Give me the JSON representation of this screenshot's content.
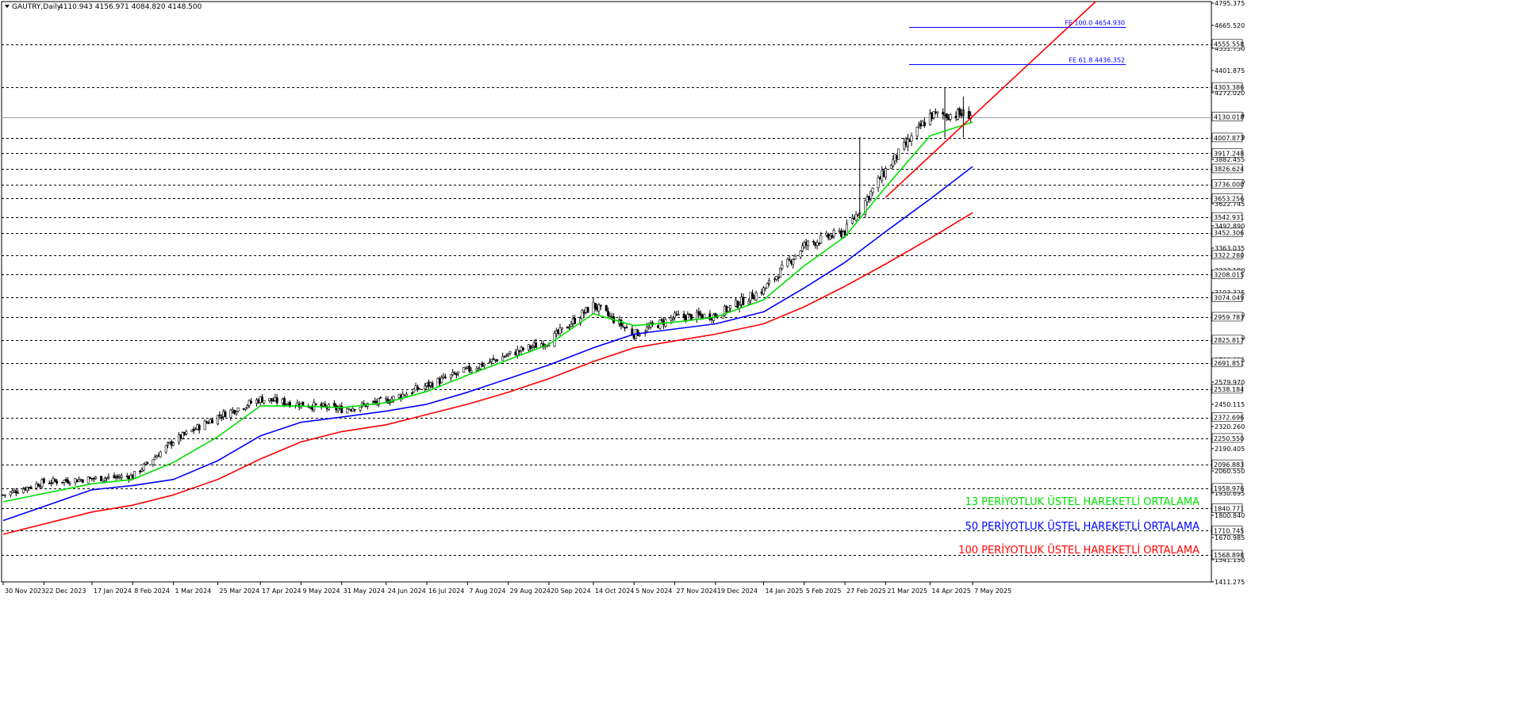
{
  "header": {
    "symbol_timeframe": "GAUTRY,Daily",
    "ohlc": "4110.943 4156.971 4084.820 4148.500"
  },
  "colors": {
    "background": "#ffffff",
    "candle": "#000000",
    "ema13": "#00e000",
    "ema50": "#0000ff",
    "ema100": "#ff0000",
    "trendline": "#ff0000",
    "fib": "#0000ff",
    "level_line": "#000000"
  },
  "chart_data": {
    "type": "candlestick",
    "title": "GAUTRY,Daily",
    "ylim": [
      1411.275,
      4795.375
    ],
    "x_tick_labels": [
      "30 Nov 2023",
      "22 Dec 2023",
      "17 Jan 2024",
      "8 Feb 2024",
      "1 Mar 2024",
      "25 Mar 2024",
      "17 Apr 2024",
      "9 May 2024",
      "31 May 2024",
      "24 Jun 2024",
      "16 Jul 2024",
      "7 Aug 2024",
      "29 Aug 2024",
      "20 Sep 2024",
      "14 Oct 2024",
      "5 Nov 2024",
      "27 Nov 2024",
      "19 Dec 2024",
      "14 Jan 2025",
      "5 Feb 2025",
      "27 Feb 2025",
      "21 Mar 2025",
      "14 Apr 2025",
      "7 May 2025"
    ],
    "y_tick_labels": [
      "4795.375",
      "4665.520",
      "4531.730",
      "4401.875",
      "4272.020",
      "4142.165",
      "4012.310",
      "3882.455",
      "3752.600",
      "3622.745",
      "3492.890",
      "3363.035",
      "3233.180",
      "3103.325",
      "2973.470",
      "2839.680",
      "2709.825",
      "2579.970",
      "2450.115",
      "2320.260",
      "2190.405",
      "2060.550",
      "1930.695",
      "1800.840",
      "1670.985",
      "1541.130",
      "1411.275"
    ],
    "level_lines": [
      4555.558,
      4303.386,
      4007.873,
      3917.248,
      3826.624,
      3736.0,
      3653.256,
      3542.931,
      3452.306,
      3322.28,
      3208.015,
      3074.049,
      2959.783,
      2825.817,
      2691.851,
      2538.184,
      2372.696,
      2250.55,
      2096.883,
      1958.976,
      1840.771,
      1710.745,
      1568.898
    ],
    "current_price": 4130.018,
    "fibonacci_expansion": [
      {
        "label": "FE 100.0 4654.930",
        "value": 4654.93
      },
      {
        "label": "FE 61.8 4436.352",
        "value": 4436.352
      }
    ],
    "trendline": {
      "start": [
        "21 Mar 2025",
        3660
      ],
      "end": [
        "7 May 2025",
        4130
      ]
    },
    "candles_anchor_close": [
      [
        "2023-11-30",
        1920
      ],
      [
        "2023-12-22",
        1995
      ],
      [
        "2024-01-17",
        2015
      ],
      [
        "2024-02-08",
        2030
      ],
      [
        "2024-03-01",
        2235
      ],
      [
        "2024-03-25",
        2380
      ],
      [
        "2024-04-17",
        2480
      ],
      [
        "2024-05-09",
        2450
      ],
      [
        "2024-05-31",
        2420
      ],
      [
        "2024-06-24",
        2470
      ],
      [
        "2024-07-16",
        2560
      ],
      [
        "2024-08-07",
        2650
      ],
      [
        "2024-08-29",
        2740
      ],
      [
        "2024-09-20",
        2820
      ],
      [
        "2024-10-14",
        3030
      ],
      [
        "2024-11-05",
        2860
      ],
      [
        "2024-11-27",
        2960
      ],
      [
        "2024-12-19",
        2970
      ],
      [
        "2025-01-14",
        3120
      ],
      [
        "2025-02-05",
        3380
      ],
      [
        "2025-02-27",
        3460
      ],
      [
        "2025-03-21",
        3820
      ],
      [
        "2025-04-14",
        4140
      ],
      [
        "2025-05-07",
        4148.5
      ]
    ],
    "series": [
      {
        "name": "13 PERİYOTLUK ÜSTEL HAREKETLİ ORTALAMA",
        "points": [
          [
            "2023-11-30",
            1880
          ],
          [
            "2024-01-17",
            1985
          ],
          [
            "2024-02-08",
            2010
          ],
          [
            "2024-03-01",
            2110
          ],
          [
            "2024-03-25",
            2260
          ],
          [
            "2024-04-17",
            2440
          ],
          [
            "2024-05-09",
            2440
          ],
          [
            "2024-05-31",
            2430
          ],
          [
            "2024-06-24",
            2460
          ],
          [
            "2024-07-16",
            2525
          ],
          [
            "2024-08-07",
            2620
          ],
          [
            "2024-08-29",
            2710
          ],
          [
            "2024-09-20",
            2800
          ],
          [
            "2024-10-14",
            2980
          ],
          [
            "2024-11-05",
            2910
          ],
          [
            "2024-11-27",
            2930
          ],
          [
            "2024-12-19",
            2960
          ],
          [
            "2025-01-14",
            3060
          ],
          [
            "2025-02-05",
            3260
          ],
          [
            "2025-02-27",
            3430
          ],
          [
            "2025-03-21",
            3720
          ],
          [
            "2025-04-14",
            4020
          ],
          [
            "2025-05-07",
            4100
          ]
        ]
      },
      {
        "name": "50 PERİYOTLUK ÜSTEL HAREKETLİ ORTALAMA",
        "points": [
          [
            "2023-11-30",
            1770
          ],
          [
            "2024-01-17",
            1950
          ],
          [
            "2024-02-08",
            1975
          ],
          [
            "2024-03-01",
            2010
          ],
          [
            "2024-03-25",
            2120
          ],
          [
            "2024-04-17",
            2265
          ],
          [
            "2024-05-09",
            2345
          ],
          [
            "2024-05-31",
            2375
          ],
          [
            "2024-06-24",
            2410
          ],
          [
            "2024-07-16",
            2450
          ],
          [
            "2024-08-07",
            2520
          ],
          [
            "2024-08-29",
            2600
          ],
          [
            "2024-09-20",
            2680
          ],
          [
            "2024-10-14",
            2780
          ],
          [
            "2024-11-05",
            2860
          ],
          [
            "2024-11-27",
            2890
          ],
          [
            "2024-12-19",
            2920
          ],
          [
            "2025-01-14",
            2990
          ],
          [
            "2025-02-05",
            3130
          ],
          [
            "2025-02-27",
            3280
          ],
          [
            "2025-03-21",
            3460
          ],
          [
            "2025-04-14",
            3650
          ],
          [
            "2025-05-07",
            3840
          ]
        ]
      },
      {
        "name": "100 PERİYOTLUK ÜSTEL HAREKETLİ ORTALAMA",
        "points": [
          [
            "2023-11-30",
            1690
          ],
          [
            "2024-01-17",
            1820
          ],
          [
            "2024-02-08",
            1860
          ],
          [
            "2024-03-01",
            1920
          ],
          [
            "2024-03-25",
            2010
          ],
          [
            "2024-04-17",
            2130
          ],
          [
            "2024-05-09",
            2230
          ],
          [
            "2024-05-31",
            2290
          ],
          [
            "2024-06-24",
            2330
          ],
          [
            "2024-07-16",
            2390
          ],
          [
            "2024-08-07",
            2450
          ],
          [
            "2024-08-29",
            2520
          ],
          [
            "2024-09-20",
            2600
          ],
          [
            "2024-10-14",
            2700
          ],
          [
            "2024-11-05",
            2780
          ],
          [
            "2024-11-27",
            2820
          ],
          [
            "2024-12-19",
            2860
          ],
          [
            "2025-01-14",
            2920
          ],
          [
            "2025-02-05",
            3020
          ],
          [
            "2025-02-27",
            3140
          ],
          [
            "2025-03-21",
            3270
          ],
          [
            "2025-04-14",
            3420
          ],
          [
            "2025-05-07",
            3570
          ]
        ]
      }
    ],
    "legend_position": "bottom-right",
    "grid": false
  }
}
